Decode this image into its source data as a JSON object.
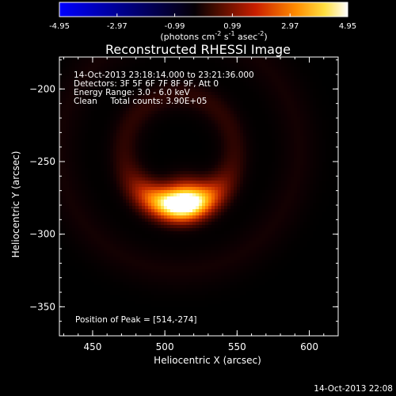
{
  "chart_data": {
    "type": "heatmap",
    "title": "Reconstructed RHESSI Image",
    "xlabel": "Heliocentric X (arcsec)",
    "ylabel": "Heliocentric Y (arcsec)",
    "xlim": [
      427,
      620
    ],
    "ylim": [
      -370,
      -178
    ],
    "xticks": [
      450,
      500,
      550,
      600
    ],
    "yticks": [
      -200,
      -250,
      -300,
      -350
    ],
    "colorbar": {
      "min": -4.95,
      "max": 4.95,
      "ticks": [
        "-4.95",
        "-2.97",
        "-0.99",
        "0.99",
        "2.97",
        "4.95"
      ],
      "label_main": "(photons cm",
      "sup1": "-2",
      "mid1": " s",
      "sup2": "-1",
      "mid2": " asec",
      "sup3": "-2",
      "end": ")"
    },
    "annotations": [
      "14-Oct-2013 23:18:14.000 to 23:21:36.000",
      "Detectors: 3F 5F 6F 7F 8F 9F, Att 0",
      "Energy Range: 3.0 - 6.0 keV",
      "Clean     Total counts: 3.90E+05"
    ],
    "peak_text": "Position of Peak = [514,-274]",
    "peak": [
      514,
      -274
    ],
    "source": {
      "ring_center": [
        510,
        -242
      ],
      "ring_radius": 38,
      "ring_peak_angle_deg": -90,
      "peak_value": 4.95
    },
    "timestamp": "14-Oct-2013 22:08",
    "colors": {
      "background": "#000000",
      "axes": "#ffffff"
    }
  }
}
